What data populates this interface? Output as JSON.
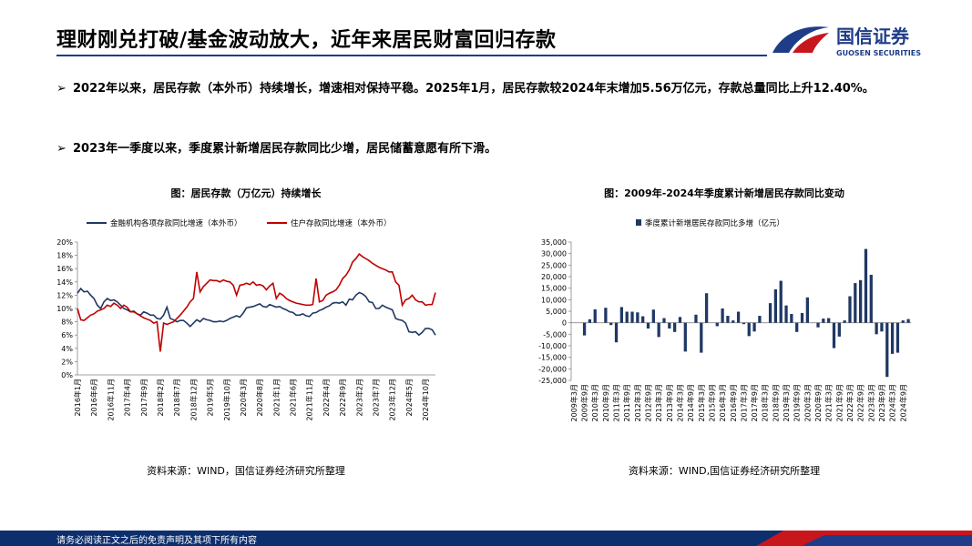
{
  "header": {
    "title": "理财刚兑打破/基金波动放大，近年来居民财富回归存款",
    "logo_name": "国信证券",
    "logo_en": "GUOSEN SECURITIES"
  },
  "bullets": [
    "2022年以来，居民存款（本外币）持续增长，增速相对保持平稳。2025年1月，居民存款较2024年末增加5.56万亿元，存款总量同比上升12.40%。",
    "2023年一季度以来，季度累计新增居民存款同比少增，居民储蓄意愿有所下滑。"
  ],
  "chart_data": [
    {
      "type": "line",
      "title": "图：居民存款（万亿元）持续增长",
      "source": "资料来源：WIND，国信证券经济研究所整理",
      "categories": [
        "2016年1月",
        null,
        null,
        null,
        null,
        "2016年6月",
        null,
        null,
        null,
        null,
        "2016年11月",
        null,
        null,
        null,
        null,
        "2017年4月",
        null,
        null,
        null,
        null,
        "2017年9月",
        null,
        null,
        null,
        null,
        "2018年2月",
        null,
        null,
        null,
        null,
        "2018年7月",
        null,
        null,
        null,
        null,
        "2018年12月",
        null,
        null,
        null,
        null,
        "2019年5月",
        null,
        null,
        null,
        null,
        "2019年10月",
        null,
        null,
        null,
        null,
        "2020年3月",
        null,
        null,
        null,
        null,
        "2020年8月",
        null,
        null,
        null,
        null,
        "2021年1月",
        null,
        null,
        null,
        null,
        "2021年6月",
        null,
        null,
        null,
        null,
        "2021年11月",
        null,
        null,
        null,
        null,
        "2022年4月",
        null,
        null,
        null,
        null,
        "2022年9月",
        null,
        null,
        null,
        null,
        "2023年2月",
        null,
        null,
        null,
        null,
        "2023年7月",
        null,
        null,
        null,
        null,
        "2023年12月",
        null,
        null,
        null,
        null,
        "2024年5月",
        null,
        null,
        null,
        null,
        "2024年10月",
        null,
        null,
        null
      ],
      "series": [
        {
          "name": "金融机构各项存款同比增速（本外币）",
          "color": "#1f3864",
          "values": [
            12.3,
            13.0,
            12.5,
            12.6,
            12.0,
            11.5,
            10.5,
            10.0,
            11.0,
            11.5,
            11.2,
            11.3,
            11.0,
            10.5,
            10.0,
            9.8,
            9.5,
            9.6,
            9.2,
            9.0,
            9.5,
            9.3,
            9.0,
            9.0,
            8.5,
            8.4,
            9.0,
            10.2,
            8.5,
            8.3,
            8.0,
            8.2,
            8.2,
            7.8,
            7.3,
            7.8,
            8.3,
            8.0,
            8.5,
            8.3,
            8.2,
            8.0,
            8.0,
            8.1,
            8.0,
            8.2,
            8.5,
            8.7,
            8.9,
            8.7,
            9.3,
            10.1,
            10.2,
            10.3,
            10.5,
            10.7,
            10.3,
            10.2,
            10.6,
            10.4,
            10.2,
            10.3,
            10.0,
            9.8,
            9.5,
            9.4,
            9.0,
            9.0,
            9.2,
            8.9,
            8.8,
            9.3,
            9.4,
            9.7,
            9.9,
            10.2,
            10.4,
            10.8,
            10.9,
            10.8,
            11.0,
            10.5,
            11.4,
            11.3,
            12.0,
            12.4,
            12.2,
            11.8,
            11.0,
            10.9,
            10.0,
            10.0,
            10.5,
            10.2,
            10.0,
            9.8,
            8.5,
            8.3,
            8.2,
            7.8,
            6.5,
            6.4,
            6.5,
            6.0,
            6.4,
            7.0,
            7.0,
            6.8,
            6.0
          ]
        },
        {
          "name": "住户存款同比增速（本外币）",
          "color": "#c00000",
          "values": [
            10.0,
            8.3,
            8.2,
            8.6,
            9.0,
            9.2,
            9.6,
            9.8,
            10.0,
            10.5,
            10.3,
            10.8,
            10.5,
            10.0,
            10.5,
            10.2,
            9.5,
            9.5,
            9.2,
            8.9,
            8.6,
            8.4,
            8.2,
            7.8,
            8.0,
            3.5,
            7.8,
            7.6,
            7.8,
            8.0,
            8.5,
            9.0,
            9.6,
            10.2,
            11.0,
            11.5,
            15.5,
            12.5,
            13.3,
            13.8,
            14.3,
            14.2,
            14.2,
            14.0,
            14.3,
            14.1,
            14.0,
            13.5,
            12.0,
            13.5,
            13.6,
            13.8,
            13.6,
            14.0,
            13.5,
            13.6,
            13.4,
            12.8,
            13.4,
            13.8,
            11.5,
            12.3,
            12.0,
            11.5,
            11.2,
            11.0,
            10.8,
            10.7,
            10.6,
            10.5,
            10.5,
            10.6,
            14.5,
            11.0,
            11.2,
            12.0,
            12.3,
            12.5,
            12.8,
            13.5,
            14.5,
            15.0,
            15.8,
            17.0,
            17.5,
            18.2,
            17.8,
            17.5,
            17.2,
            16.8,
            16.5,
            16.2,
            16.0,
            15.8,
            15.5,
            15.5,
            14.0,
            13.5,
            10.5,
            11.3,
            11.5,
            12.0,
            11.3,
            11.0,
            11.0,
            10.5,
            10.6,
            10.6,
            12.4
          ]
        }
      ],
      "ylim": [
        0,
        20
      ],
      "yticks": [
        {
          "value": 0,
          "label": "0%"
        },
        {
          "value": 2,
          "label": "2%"
        },
        {
          "value": 4,
          "label": "4%"
        },
        {
          "value": 6,
          "label": "6%"
        },
        {
          "value": 8,
          "label": "8%"
        },
        {
          "value": 10,
          "label": "10%"
        },
        {
          "value": 12,
          "label": "12%"
        },
        {
          "value": 14,
          "label": "14%"
        },
        {
          "value": 16,
          "label": "16%"
        },
        {
          "value": 18,
          "label": "18%"
        },
        {
          "value": 20,
          "label": "20%"
        }
      ]
    },
    {
      "type": "bar",
      "title": "图：2009年-2024年季度累计新增居民存款同比变动",
      "source": "资料来源：WIND,国信证券经济研究所整理",
      "categories": [
        "2009年3月",
        null,
        "2009年9月",
        null,
        "2010年3月",
        null,
        "2010年9月",
        null,
        "2011年3月",
        null,
        "2011年9月",
        null,
        "2012年3月",
        null,
        "2012年9月",
        null,
        "2013年3月",
        null,
        "2013年9月",
        null,
        "2014年3月",
        null,
        "2014年9月",
        null,
        "2015年3月",
        null,
        "2015年9月",
        null,
        "2016年3月",
        null,
        "2016年9月",
        null,
        "2017年3月",
        null,
        "2017年9月",
        null,
        "2018年3月",
        null,
        "2018年9月",
        null,
        "2019年3月",
        null,
        "2019年9月",
        null,
        "2020年3月",
        null,
        "2020年9月",
        null,
        "2021年3月",
        null,
        "2021年9月",
        null,
        "2022年3月",
        null,
        "2022年9月",
        null,
        "2023年3月",
        null,
        "2023年9月",
        null,
        "2024年3月",
        null,
        "2024年9月",
        null
      ],
      "series": [
        {
          "name": "季度累计新增居民存款同比多增（亿元）",
          "color": "#1f3864",
          "values": [
            0,
            0,
            -5500,
            1500,
            5800,
            0,
            6500,
            -1000,
            -8500,
            6800,
            4800,
            4800,
            4500,
            2800,
            -2500,
            5700,
            -6200,
            2000,
            -2500,
            -4000,
            2500,
            -12500,
            0,
            3500,
            -13000,
            12800,
            0,
            -1500,
            6200,
            3000,
            1000,
            4800,
            -600,
            -5800,
            -3800,
            3000,
            0,
            8500,
            14500,
            18200,
            7500,
            3800,
            -4000,
            4200,
            11000,
            0,
            -2000,
            1800,
            2000,
            -11000,
            -6000,
            1000,
            11500,
            17200,
            18500,
            32000,
            20800,
            -5000,
            -3800,
            -23500,
            -13500,
            -13000,
            1000,
            1600
          ]
        }
      ],
      "ylim": [
        -25000,
        35000
      ],
      "yticks": [
        {
          "value": -25000,
          "label": "-25,000"
        },
        {
          "value": -20000,
          "label": "-20,000"
        },
        {
          "value": -15000,
          "label": "-15,000"
        },
        {
          "value": -10000,
          "label": "-10,000"
        },
        {
          "value": -5000,
          "label": "-5,000"
        },
        0,
        {
          "value": 5000,
          "label": "5,000"
        },
        {
          "value": 10000,
          "label": "10,000"
        },
        {
          "value": 15000,
          "label": "15,000"
        },
        {
          "value": 20000,
          "label": "20,000"
        },
        {
          "value": 25000,
          "label": "25,000"
        },
        {
          "value": 30000,
          "label": "30,000"
        },
        {
          "value": 35000,
          "label": "35,000"
        }
      ]
    }
  ],
  "footer": "请务必阅读正文之后的免责声明及其项下所有内容"
}
